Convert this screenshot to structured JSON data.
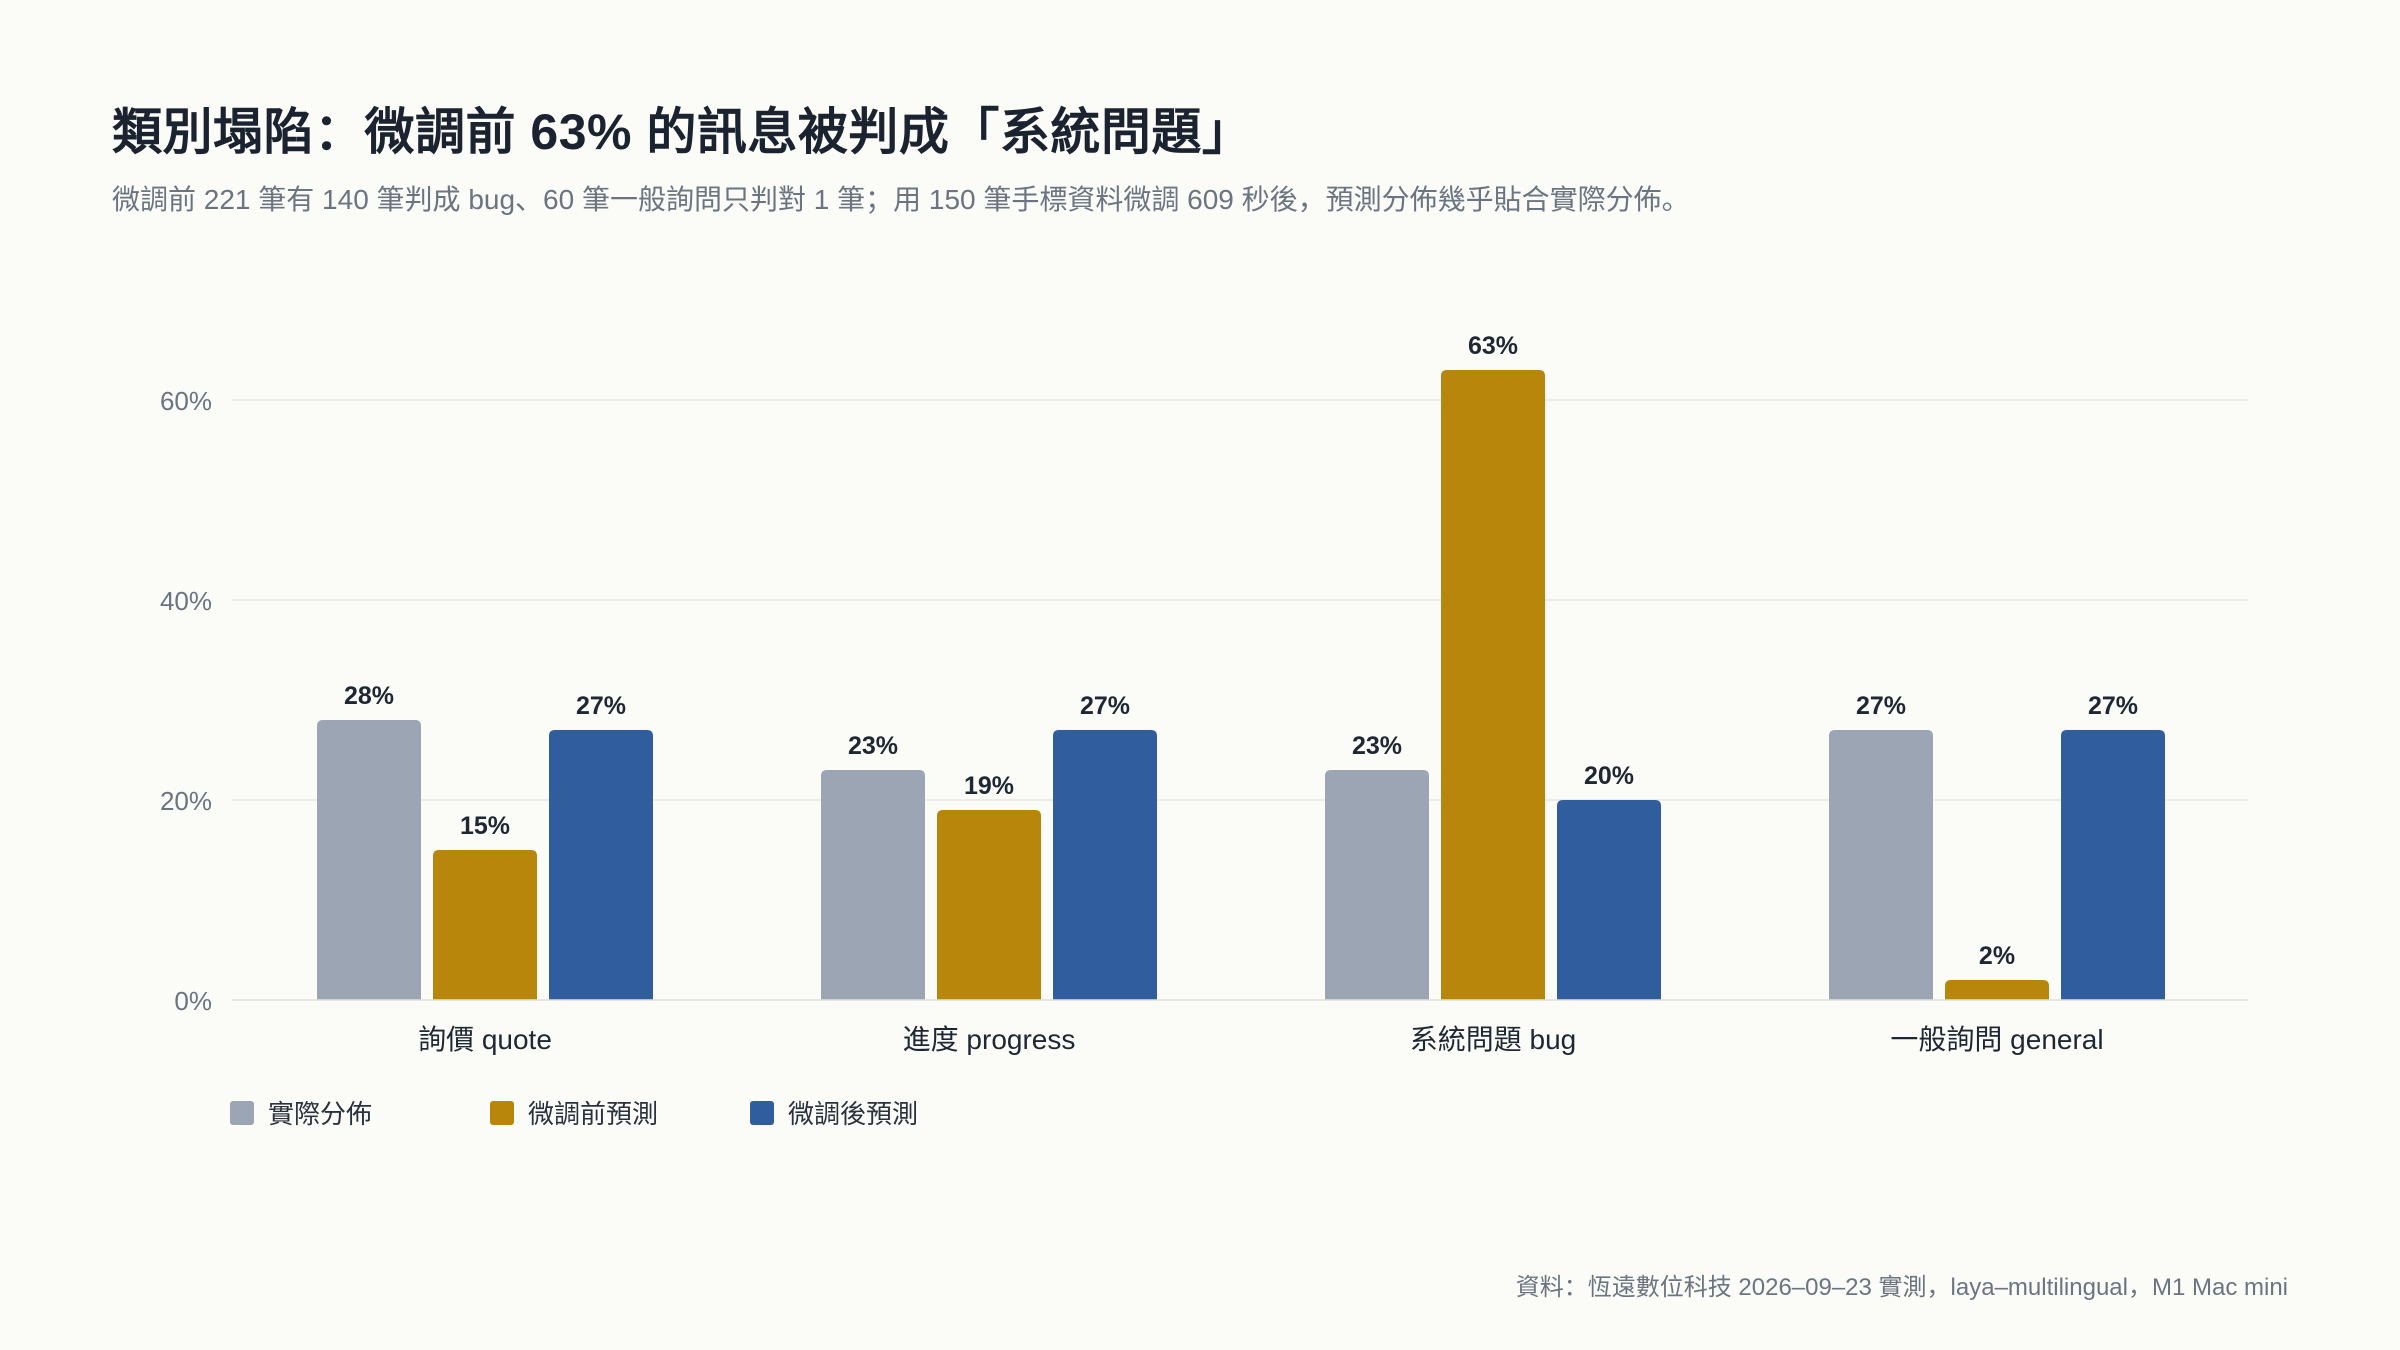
{
  "title": "類別塌陷：微調前 63% 的訊息被判成「系統問題」",
  "subtitle": "微調前 221 筆有 140 筆判成 bug、60 筆一般詢問只判對 1 筆；用 150 筆手標資料微調 609 秒後，預測分佈幾乎貼合實際分佈。",
  "source": "資料：恆遠數位科技 2026–09–23 實測，laya–multilingual，M1 Mac mini",
  "chart_data": {
    "type": "bar",
    "categories": [
      "詢價 quote",
      "進度 progress",
      "系統問題 bug",
      "一般詢問 general"
    ],
    "series": [
      {
        "name": "實際分佈",
        "color": "#9ca5b3",
        "values": [
          28,
          23,
          23,
          27
        ],
        "labels": [
          "28%",
          "23%",
          "23%",
          "27%"
        ]
      },
      {
        "name": "微調前預測",
        "color": "#b8860b",
        "values": [
          15,
          19,
          63,
          2
        ],
        "labels": [
          "15%",
          "19%",
          "63%",
          "2%"
        ]
      },
      {
        "name": "微調後預測",
        "color": "#2f5d9e",
        "values": [
          27,
          27,
          20,
          27
        ],
        "labels": [
          "27%",
          "27%",
          "20%",
          "27%"
        ]
      }
    ],
    "ylim": [
      0,
      70
    ],
    "yticks": [
      0,
      20,
      40,
      60
    ],
    "ytick_labels": [
      "0%",
      "20%",
      "40%",
      "60%"
    ],
    "grid": true,
    "legend": "bottom-left"
  }
}
